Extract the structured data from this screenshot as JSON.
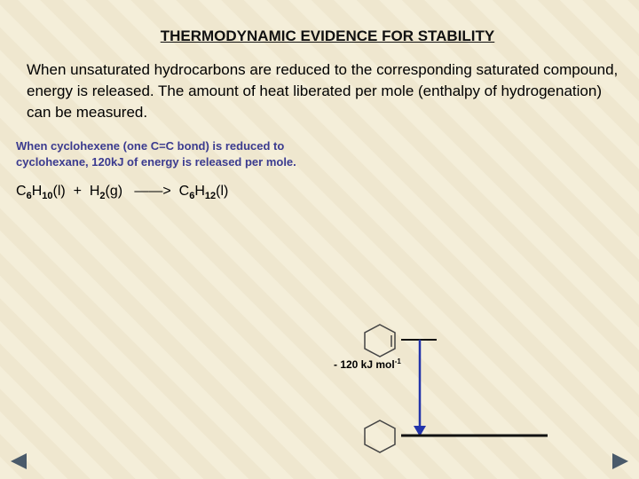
{
  "header": {
    "title": "THERMODYNAMIC EVIDENCE FOR STABILITY"
  },
  "intro": "When unsaturated hydrocarbons are reduced to the corresponding saturated compound, energy is released. The amount of heat liberated per mole (enthalpy of hydrogenation) can be measured.",
  "note": "When cyclohexene (one C=C bond) is reduced to cyclohexane, 120kJ of energy is released per mole.",
  "equation": {
    "parts": [
      "C",
      "6",
      "H",
      "10",
      "(l)  +  H",
      "2",
      "(g)",
      "——>",
      "C",
      "6",
      "H",
      "12",
      "(l)"
    ]
  },
  "energy_label": {
    "text": "- 120 kJ mol",
    "superscript": "-1"
  }
}
